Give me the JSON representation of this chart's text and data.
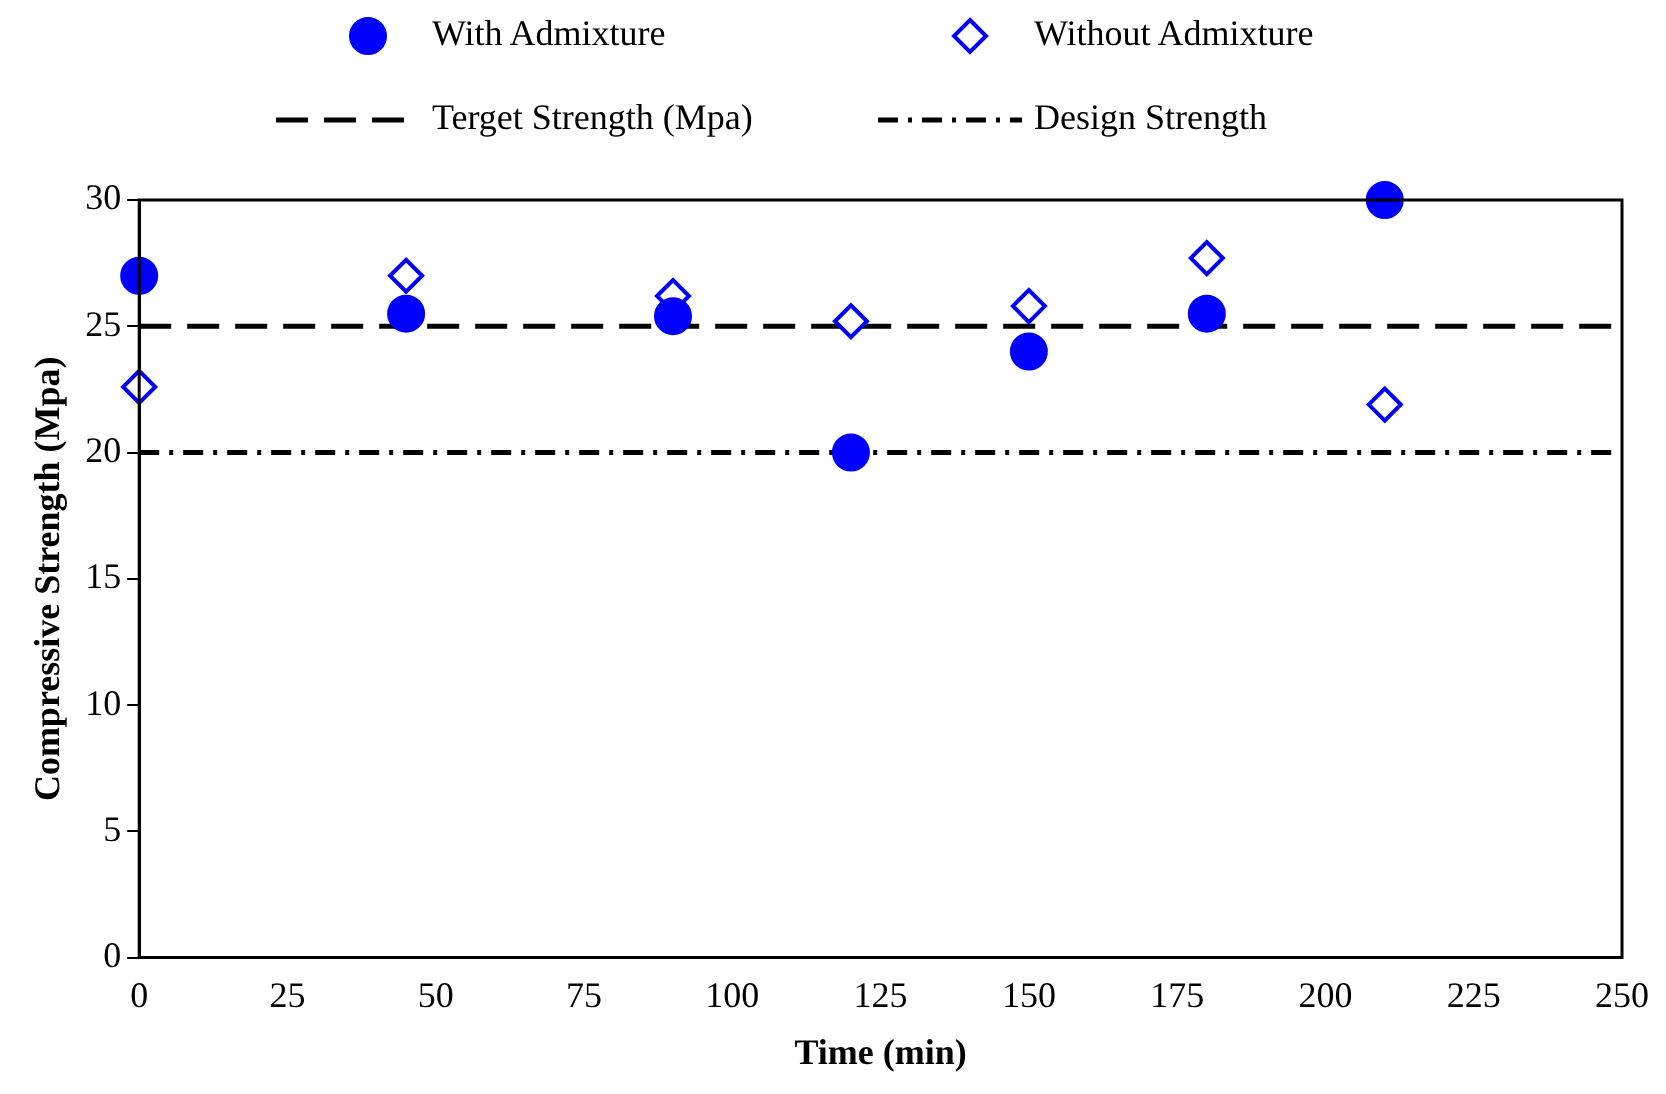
{
  "chart_data": {
    "type": "scatter",
    "xlabel": "Time (min)",
    "ylabel": "Compressive Strength (Mpa)",
    "x": [
      0,
      45,
      90,
      120,
      150,
      180,
      210
    ],
    "series": [
      {
        "name": "With Admixture",
        "color": "#0000ff",
        "marker": "circle",
        "values": [
          27,
          25.5,
          25.4,
          20,
          24,
          25.5,
          30
        ]
      },
      {
        "name": "Without Admixture",
        "color": "#0000ff",
        "marker": "diamond",
        "values": [
          22.6,
          27,
          26.2,
          25.2,
          25.8,
          27.7,
          21.9
        ]
      }
    ],
    "ref_lines": [
      {
        "axis": "y",
        "value": 25,
        "label": "Terget Strength (Mpa)",
        "color": "#000000",
        "line_style": "dashed"
      },
      {
        "axis": "y",
        "value": 20,
        "label": "Design Strength",
        "color": "#000000",
        "line_style": "dashdot"
      }
    ],
    "xlim": [
      0,
      250
    ],
    "xticks": [
      0,
      25,
      50,
      75,
      100,
      125,
      150,
      175,
      200,
      225,
      250
    ],
    "ylim": [
      0,
      30
    ],
    "yticks": [
      0,
      5,
      10,
      15,
      20,
      25,
      30
    ],
    "grid": false,
    "legend": "top"
  }
}
